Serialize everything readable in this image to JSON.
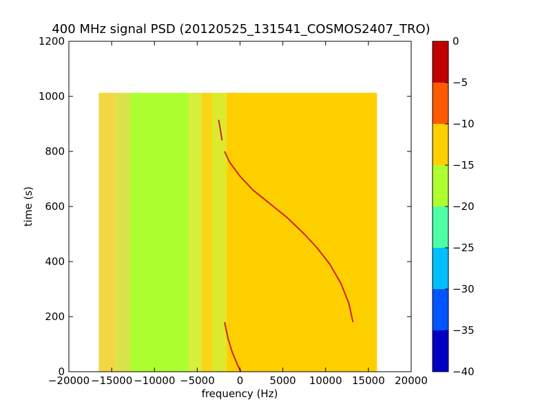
{
  "chart_data": {
    "type": "heatmap",
    "title": "400 MHz signal PSD (20120525_131541_COSMOS2407_TRO)",
    "xlabel": "frequency (Hz)",
    "ylabel": "time (s)",
    "xlim": [
      -20000,
      20000
    ],
    "ylim": [
      0,
      1200
    ],
    "xticks": [
      -20000,
      -15000,
      -10000,
      -5000,
      0,
      5000,
      10000,
      15000,
      20000
    ],
    "xtick_labels": [
      "−20000",
      "−15000",
      "−10000",
      "−5000",
      "0",
      "5000",
      "10000",
      "15000",
      "20000"
    ],
    "yticks": [
      0,
      200,
      400,
      600,
      800,
      1000,
      1200
    ],
    "ytick_labels": [
      "0",
      "200",
      "400",
      "600",
      "800",
      "1000",
      "1200"
    ],
    "data_extent": {
      "x": [
        -16500,
        16000
      ],
      "y": [
        0,
        1013
      ]
    },
    "bands": [
      {
        "x": [
          -16500,
          -14500
        ],
        "level": -14,
        "color": "#f1d842"
      },
      {
        "x": [
          -14500,
          -12800
        ],
        "level": -15,
        "color": "#d9e44a"
      },
      {
        "x": [
          -12800,
          -6000
        ],
        "level": -17,
        "color": "#adff2f"
      },
      {
        "x": [
          -6000,
          -4500
        ],
        "level": -15,
        "color": "#d6ef3f"
      },
      {
        "x": [
          -4500,
          -3300
        ],
        "level": -13,
        "color": "#fbd513"
      },
      {
        "x": [
          -3300,
          -1600
        ],
        "level": -15,
        "color": "#dcea2e"
      },
      {
        "x": [
          -1600,
          16000
        ],
        "level": -12,
        "color": "#ffd000"
      }
    ],
    "signal_track": {
      "color": "#d0202a",
      "segments": [
        {
          "points": [
            [
              -2500,
              915
            ],
            [
              -2300,
              880
            ],
            [
              -2100,
              840
            ]
          ]
        },
        {
          "points": [
            [
              -1800,
              800
            ],
            [
              -1200,
              760
            ],
            [
              0,
              710
            ],
            [
              1500,
              660
            ],
            [
              3500,
              610
            ],
            [
              5500,
              560
            ],
            [
              7500,
              500
            ],
            [
              9000,
              450
            ],
            [
              10500,
              390
            ],
            [
              11800,
              320
            ],
            [
              12700,
              250
            ],
            [
              13200,
              180
            ]
          ]
        },
        {
          "points": [
            [
              -1800,
              180
            ],
            [
              -1400,
              120
            ],
            [
              -900,
              70
            ],
            [
              -300,
              25
            ],
            [
              100,
              0
            ]
          ]
        }
      ]
    },
    "colorbar": {
      "range": [
        -40,
        0
      ],
      "ticks": [
        0,
        -5,
        -10,
        -15,
        -20,
        -25,
        -30,
        -35,
        -40
      ],
      "tick_labels": [
        "0",
        "−5",
        "−10",
        "−15",
        "−20",
        "−25",
        "−30",
        "−35",
        "−40"
      ],
      "levels": [
        {
          "range": [
            -5,
            0
          ],
          "color": "#c00000"
        },
        {
          "range": [
            -10,
            -5
          ],
          "color": "#ff5a00"
        },
        {
          "range": [
            -15,
            -10
          ],
          "color": "#ffd000"
        },
        {
          "range": [
            -20,
            -15
          ],
          "color": "#adff2f"
        },
        {
          "range": [
            -25,
            -20
          ],
          "color": "#4dffa6"
        },
        {
          "range": [
            -30,
            -25
          ],
          "color": "#00bfff"
        },
        {
          "range": [
            -35,
            -30
          ],
          "color": "#0055ff"
        },
        {
          "range": [
            -40,
            -35
          ],
          "color": "#0000c4"
        }
      ]
    }
  }
}
